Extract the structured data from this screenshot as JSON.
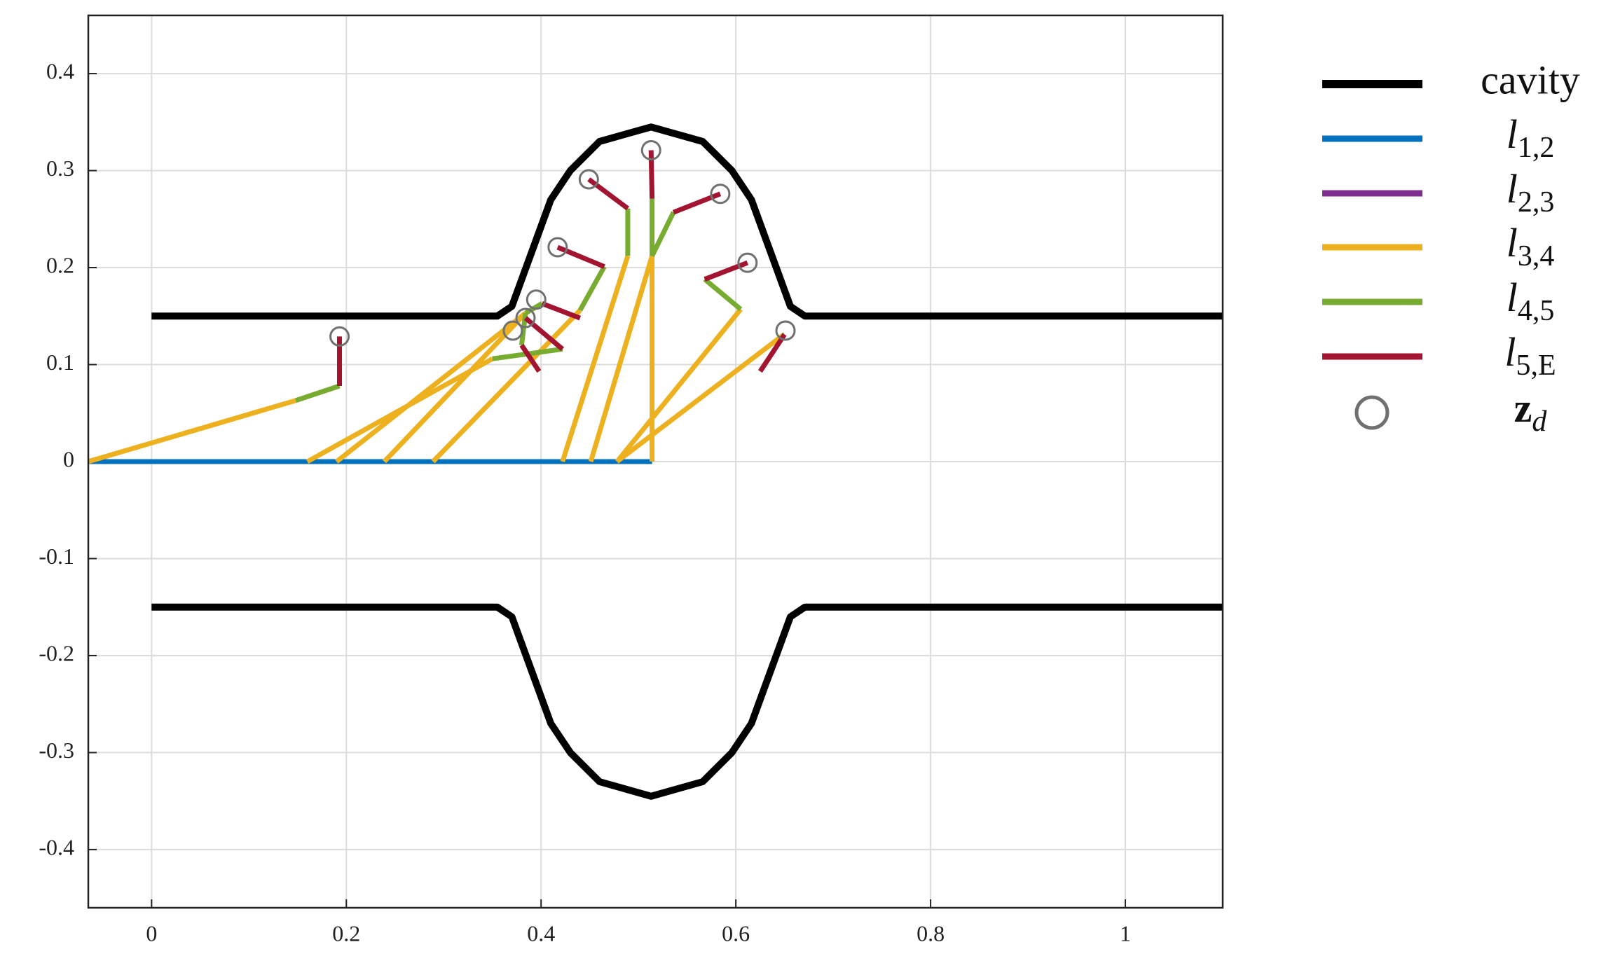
{
  "chart_data": {
    "type": "line",
    "xlim": [
      -0.065,
      1.1
    ],
    "ylim": [
      -0.46,
      0.46
    ],
    "xticks": [
      0,
      0.2,
      0.4,
      0.6,
      0.8,
      1
    ],
    "yticks": [
      -0.4,
      -0.3,
      -0.2,
      -0.1,
      0,
      0.1,
      0.2,
      0.3,
      0.4
    ],
    "grid": true,
    "legend": "right",
    "series": [
      {
        "name": "cavity",
        "color": "#000000",
        "width": 10,
        "x": [
          0,
          0.355,
          0.37,
          0.41,
          0.43,
          0.46,
          0.513,
          0.566,
          0.596,
          0.616,
          0.656,
          0.671,
          1.1,
          null,
          0,
          0.355,
          0.37,
          0.41,
          0.43,
          0.46,
          0.513,
          0.566,
          0.596,
          0.616,
          0.656,
          0.671,
          1.1
        ],
        "y": [
          0.15,
          0.15,
          0.16,
          0.27,
          0.3,
          0.33,
          0.345,
          0.33,
          0.3,
          0.27,
          0.16,
          0.15,
          0.15,
          null,
          -0.15,
          -0.15,
          -0.16,
          -0.27,
          -0.3,
          -0.33,
          -0.345,
          -0.33,
          -0.3,
          -0.27,
          -0.16,
          -0.15,
          -0.15
        ]
      },
      {
        "name": "l1,2",
        "color": "#0072bd",
        "width": 7,
        "x": [
          -0.065,
          0.514
        ],
        "y": [
          0,
          0
        ]
      },
      {
        "name": "l2,3",
        "color": "#7e2f8e",
        "width": 7,
        "x": [],
        "y": []
      },
      {
        "name": "l3,4",
        "color": "#edb120",
        "width": 7,
        "x": [
          -0.065,
          0.148,
          null,
          0.16,
          0.35,
          null,
          0.19,
          0.384,
          null,
          0.239,
          0.384,
          null,
          0.289,
          0.44,
          null,
          0.422,
          0.489,
          null,
          0.451,
          0.514,
          null,
          0.514,
          0.514,
          null,
          0.478,
          0.605,
          null,
          0.478,
          0.648
        ],
        "y": [
          0,
          0.063,
          null,
          0,
          0.106,
          null,
          0,
          0.153,
          null,
          0,
          0.153,
          null,
          0,
          0.156,
          null,
          0,
          0.212,
          null,
          0,
          0.212,
          null,
          0,
          0.212,
          null,
          0,
          0.157,
          null,
          0,
          0.13
        ]
      },
      {
        "name": "l4,5",
        "color": "#77ac30",
        "width": 7,
        "x": [
          0.148,
          0.193,
          null,
          0.35,
          0.422,
          null,
          0.384,
          0.401,
          null,
          0.384,
          0.38,
          null,
          0.44,
          0.465,
          null,
          0.489,
          0.489,
          null,
          0.514,
          0.536,
          null,
          0.514,
          0.514,
          null,
          0.605,
          0.568,
          null,
          0.648,
          0.65
        ],
        "y": [
          0.063,
          0.078,
          null,
          0.106,
          0.116,
          null,
          0.153,
          0.163,
          null,
          0.153,
          0.12,
          null,
          0.156,
          0.201,
          null,
          0.212,
          0.261,
          null,
          0.212,
          0.257,
          null,
          0.212,
          0.271,
          null,
          0.157,
          0.188,
          null,
          0.13,
          0.131
        ]
      },
      {
        "name": "l5,E",
        "color": "#a2142f",
        "width": 7,
        "x": [
          0.193,
          0.193,
          null,
          0.422,
          0.384,
          null,
          0.401,
          0.44,
          null,
          0.38,
          0.398,
          null,
          0.465,
          0.417,
          null,
          0.489,
          0.449,
          null,
          0.536,
          0.584,
          null,
          0.514,
          0.513,
          null,
          0.568,
          0.612,
          null,
          0.65,
          0.625
        ],
        "y": [
          0.078,
          0.129,
          null,
          0.116,
          0.148,
          null,
          0.163,
          0.148,
          null,
          0.12,
          0.093,
          null,
          0.201,
          0.221,
          null,
          0.261,
          0.291,
          null,
          0.257,
          0.276,
          null,
          0.271,
          0.321,
          null,
          0.188,
          0.205,
          null,
          0.131,
          0.093
        ]
      },
      {
        "name": "zd",
        "color": "#707070",
        "marker": "circle",
        "x": [
          0.193,
          0.371,
          0.384,
          0.395,
          0.417,
          0.449,
          0.513,
          0.584,
          0.612,
          0.651
        ],
        "y": [
          0.129,
          0.135,
          0.148,
          0.167,
          0.221,
          0.291,
          0.321,
          0.276,
          0.205,
          0.135
        ]
      }
    ]
  }
}
